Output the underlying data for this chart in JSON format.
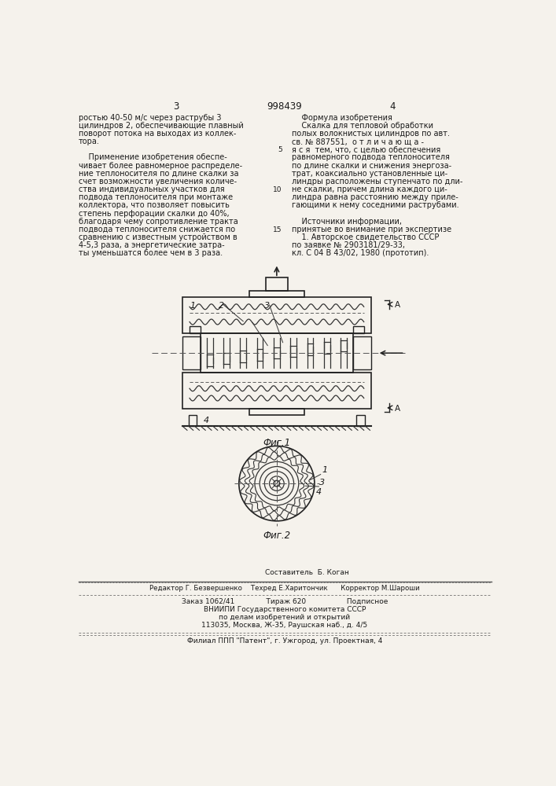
{
  "patent_number": "998439",
  "page_left": "3",
  "page_right": "4",
  "bg_color": "#f5f2ec",
  "text_color": "#1a1a1a",
  "left_column_text": [
    "ростью 40-50 м/с через раструбы 3",
    "цилиндров 2, обеспечивающие плавный ",
    "поворот потока на выходах из коллек-",
    "тора.",
    "",
    "    Применение изобретения обеспе-",
    "чивает более равномерное распределе-",
    "ние теплоносителя по длине скалки за",
    "счет возможности увеличения количе-",
    "ства индивидуальных участков для",
    "подвода теплоносителя при монтаже",
    "коллектора, что позволяет повысить",
    "степень перфорации скалки до 40%,",
    "благодаря чему сопротивление тракта",
    "подвода теплоносителя снижается по",
    "сравнению с известным устройством в",
    "4-5,3 раза, а энергетические затра-",
    "ты уменьшатся более чем в 3 раза."
  ],
  "right_column_text": [
    "    Формула изобретения",
    "    Скалка для тепловой обработки",
    "полых волокнистых цилиндров по авт.",
    "св. № 887551,  о т л и ч а ю щ а -",
    "я с я  тем, что, с целью обеспечения",
    "равномерного подвода теплоносителя",
    "по длине скалки и снижения энергоза-",
    "трат, коаксиально установленные ци-",
    "линдры расположены ступенчато по дли-",
    "не скалки, причем длина каждого ци-",
    "линдра равна расстоянию между приле-",
    "гающими к нему соседними раструбами.",
    "",
    "    Источники информации,",
    "принятые во внимание при экспертизе",
    "    1. Авторское свидетельство СССР",
    "по заявке № 2903181/29-33,",
    "кл. С 04 В 43/02, 1980 (прототип)."
  ],
  "line_numbers": {
    "5": 5,
    "10": 10,
    "15": 15
  },
  "sestavitel": "Составитель  Б. Коган",
  "editor_line": "Редактор Г. Безвершенко    Техред Е.Харитончик      Корректор М.Шароши",
  "order_line": "Заказ 1062/41              Тираж 620                  Подписное",
  "vnipi_lines": [
    "ВНИИПИ Государственного комитета СССР",
    "по делам изобретений и открытий",
    "113035, Москва, Ж-35, Раушская наб., д. 4/5"
  ],
  "filial_line": "Филиал ППП \"Патент\", г. Ужгород, ул. Проектная, 4",
  "fig1_label": "Фиг.1",
  "fig2_label": "Фиг.2"
}
